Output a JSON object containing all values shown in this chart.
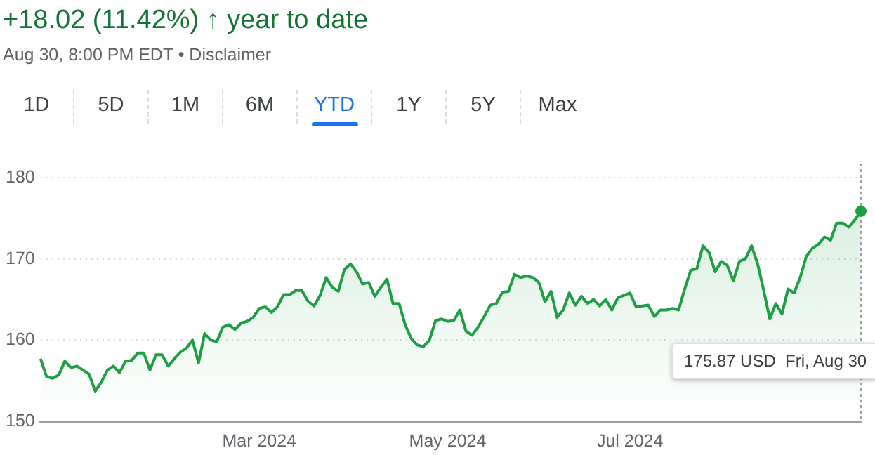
{
  "chart_data": {
    "type": "area",
    "title": "+18.02 (11.42%) ↑ year to date",
    "subtitle": "Aug 30, 8:00 PM EDT • Disclaimer",
    "annotations": [
      "1D",
      "5D",
      "1M",
      "6M",
      "YTD",
      "1Y",
      "5Y",
      "Max",
      "175.87 USD  Fri, Aug 30"
    ],
    "categories": [
      null,
      null,
      null,
      null,
      null,
      null,
      null,
      null,
      null,
      null,
      null,
      null,
      null,
      null,
      null,
      null,
      null,
      null,
      null,
      null,
      null,
      null,
      null,
      null,
      null,
      null,
      null,
      null,
      null,
      null,
      null,
      null,
      null,
      null,
      null,
      null,
      "Mar 2024",
      null,
      null,
      null,
      null,
      null,
      null,
      null,
      null,
      null,
      null,
      null,
      null,
      null,
      null,
      null,
      null,
      null,
      null,
      null,
      null,
      null,
      null,
      null,
      null,
      null,
      null,
      null,
      null,
      null,
      null,
      "May 2024",
      null,
      null,
      null,
      null,
      null,
      null,
      null,
      null,
      null,
      null,
      null,
      null,
      null,
      null,
      null,
      null,
      null,
      null,
      null,
      null,
      null,
      null,
      null,
      null,
      null,
      null,
      null,
      null,
      null,
      "Jul 2024",
      null,
      null,
      null,
      null,
      null,
      null,
      null,
      null,
      null,
      null,
      null,
      null,
      null,
      null,
      null,
      null,
      null,
      null,
      null,
      null,
      null,
      null,
      null,
      null,
      null,
      null,
      null,
      null,
      null,
      null,
      null,
      null,
      null,
      null,
      null,
      null,
      null,
      null
    ],
    "series": [
      {
        "color": "#1e9e45",
        "values": [
          157.7,
          155.5,
          155.3,
          155.7,
          157.4,
          156.6,
          156.8,
          156.3,
          155.8,
          153.7,
          154.8,
          156.3,
          156.8,
          156,
          157.4,
          157.5,
          158.4,
          158.4,
          156.3,
          158.2,
          158.2,
          156.8,
          157.7,
          158.5,
          159,
          160,
          157.2,
          160.8,
          160,
          159.8,
          161.6,
          161.9,
          161.3,
          162.1,
          162.3,
          162.8,
          163.9,
          164.1,
          163.4,
          164.1,
          165.6,
          165.6,
          166.1,
          166.1,
          164.8,
          164.2,
          165.5,
          167.7,
          166.5,
          166,
          168.7,
          169.4,
          168.4,
          166.9,
          167.1,
          165.4,
          166.5,
          167.5,
          164.5,
          164.5,
          161.9,
          160.2,
          159.4,
          159.2,
          160,
          162.4,
          162.6,
          162.3,
          162.4,
          163.7,
          161.1,
          160.6,
          161.6,
          162.9,
          164.3,
          164.5,
          165.9,
          166,
          168.1,
          167.7,
          167.9,
          167.7,
          167.1,
          164.7,
          166,
          162.8,
          163.7,
          165.8,
          164.3,
          165.4,
          164.5,
          165,
          164.2,
          165,
          163.7,
          165.2,
          165.5,
          165.8,
          164.1,
          164.2,
          164.3,
          162.9,
          163.7,
          163.7,
          163.9,
          163.7,
          166.3,
          168.6,
          168.8,
          171.6,
          170.8,
          168.4,
          169.7,
          169.2,
          167.3,
          169.7,
          170,
          171.6,
          169.4,
          166.1,
          162.6,
          164.5,
          163.2,
          166.3,
          165.8,
          167.7,
          170.3,
          171.3,
          171.8,
          172.7,
          172.3,
          174.4,
          174.4,
          173.9,
          174.8,
          175.87
        ]
      }
    ],
    "ylim": [
      150,
      180
    ],
    "yticks": [
      150,
      160,
      170,
      180
    ],
    "grid": "y",
    "legend": false,
    "marker": "none"
  }
}
